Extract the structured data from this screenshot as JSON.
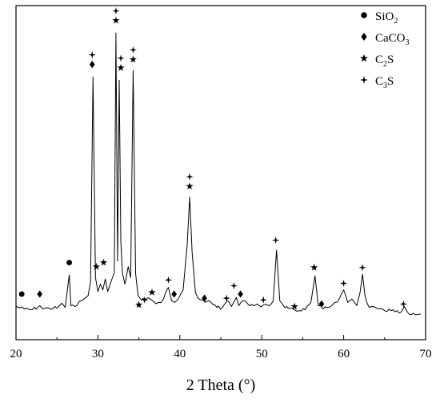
{
  "chart_data": {
    "type": "line",
    "title": "",
    "xlabel": "2 Theta (°)",
    "ylabel": "",
    "xlim": [
      20,
      70
    ],
    "x_ticks": [
      "20",
      "30",
      "40",
      "50",
      "60",
      "70"
    ],
    "y_ticks_visible": false,
    "grid": false,
    "legend_position": "top-right",
    "legend": [
      {
        "symbol": "circle",
        "label": "SiO",
        "sub": "2"
      },
      {
        "symbol": "diamond",
        "label": "CaCO",
        "sub": "3"
      },
      {
        "symbol": "star",
        "label": "C",
        "sub": "2",
        "suffix": "S"
      },
      {
        "symbol": "star4",
        "label": "C",
        "sub": "3",
        "suffix": "S"
      }
    ],
    "series": [
      {
        "x": [
          20.0,
          21.0,
          22.0,
          22.9,
          23.3,
          24.0,
          25.0,
          25.6,
          26.0,
          26.5,
          26.7,
          27.2,
          28.0,
          28.8,
          29.1,
          29.4,
          29.7,
          30.0,
          30.3,
          30.6,
          30.9,
          31.2,
          31.6,
          32.0,
          32.2,
          32.4,
          32.6,
          32.8,
          33.0,
          33.3,
          33.7,
          34.0,
          34.3,
          34.6,
          34.9,
          35.3,
          35.8,
          36.4,
          36.8,
          37.4,
          38.0,
          38.6,
          39.0,
          39.4,
          39.8,
          40.4,
          40.9,
          41.2,
          41.5,
          41.9,
          42.5,
          43.1,
          43.6,
          44.5,
          45.2,
          45.8,
          46.3,
          46.9,
          47.2,
          47.7,
          48.3,
          49.0,
          49.7,
          50.2,
          50.8,
          51.4,
          51.8,
          52.2,
          52.8,
          53.5,
          54.0,
          54.6,
          55.3,
          56.0,
          56.5,
          56.9,
          57.5,
          58.2,
          58.9,
          59.5,
          60.0,
          60.5,
          61.0,
          61.6,
          62.0,
          62.3,
          62.6,
          63.1,
          63.6,
          64.2,
          65.0,
          65.8,
          66.5,
          67.0,
          67.4,
          67.8,
          68.5,
          69.4
        ],
        "y": [
          1.5,
          1.2,
          1.1,
          1.6,
          1.2,
          1.3,
          1.3,
          1.9,
          1.4,
          5.3,
          1.6,
          1.5,
          2.2,
          2.8,
          4.5,
          29.2,
          5.0,
          3.3,
          4.2,
          3.5,
          4.8,
          3.3,
          4.5,
          5.6,
          34.5,
          7.0,
          28.8,
          9.2,
          5.5,
          4.2,
          6.3,
          5.0,
          30.0,
          5.5,
          2.8,
          2.3,
          2.3,
          2.4,
          2.1,
          2.0,
          2.4,
          3.8,
          2.2,
          2.0,
          2.4,
          3.5,
          9.0,
          14.7,
          8.0,
          3.2,
          2.3,
          2.0,
          2.2,
          1.4,
          1.4,
          2.2,
          1.5,
          2.6,
          1.6,
          2.2,
          1.8,
          1.6,
          1.6,
          1.7,
          1.6,
          2.2,
          8.3,
          2.2,
          1.4,
          1.3,
          1.1,
          1.0,
          1.1,
          2.0,
          5.2,
          1.6,
          1.2,
          1.4,
          2.0,
          2.5,
          3.5,
          2.0,
          2.4,
          1.6,
          3.2,
          5.4,
          2.8,
          1.4,
          1.5,
          1.2,
          1.0,
          1.0,
          1.0,
          0.8,
          1.5,
          0.8,
          0.7,
          0.6
        ]
      }
    ],
    "peak_markers": [
      {
        "x": 20.7,
        "y": 3.0,
        "symbols": [
          "circle"
        ]
      },
      {
        "x": 22.9,
        "y": 3.0,
        "symbols": [
          "diamond"
        ]
      },
      {
        "x": 26.5,
        "y": 6.8,
        "symbols": [
          "circle"
        ]
      },
      {
        "x": 29.3,
        "y": 30.7,
        "symbols": [
          "diamond",
          "star4"
        ]
      },
      {
        "x": 29.8,
        "y": 6.3,
        "symbols": [
          "star"
        ]
      },
      {
        "x": 30.7,
        "y": 6.8,
        "symbols": [
          "star"
        ]
      },
      {
        "x": 32.2,
        "y": 36.0,
        "symbols": [
          "star",
          "star4"
        ]
      },
      {
        "x": 32.8,
        "y": 30.3,
        "symbols": [
          "star",
          "star4"
        ]
      },
      {
        "x": 34.3,
        "y": 31.3,
        "symbols": [
          "star",
          "star4"
        ]
      },
      {
        "x": 35.0,
        "y": 1.7,
        "symbols": [
          "star"
        ]
      },
      {
        "x": 35.7,
        "y": 2.3,
        "symbols": [
          "star4"
        ]
      },
      {
        "x": 36.6,
        "y": 3.2,
        "symbols": [
          "star"
        ]
      },
      {
        "x": 38.6,
        "y": 4.7,
        "symbols": [
          "star4"
        ]
      },
      {
        "x": 39.3,
        "y": 3.0,
        "symbols": [
          "diamond"
        ]
      },
      {
        "x": 41.2,
        "y": 16.0,
        "symbols": [
          "star",
          "star4"
        ]
      },
      {
        "x": 43.0,
        "y": 2.5,
        "symbols": [
          "diamond"
        ]
      },
      {
        "x": 45.7,
        "y": 2.5,
        "symbols": [
          "star4"
        ]
      },
      {
        "x": 46.6,
        "y": 4.0,
        "symbols": [
          "star4"
        ]
      },
      {
        "x": 47.4,
        "y": 3.0,
        "symbols": [
          "diamond"
        ]
      },
      {
        "x": 50.2,
        "y": 2.3,
        "symbols": [
          "star4"
        ]
      },
      {
        "x": 51.7,
        "y": 9.5,
        "symbols": [
          "star4"
        ]
      },
      {
        "x": 54.0,
        "y": 1.5,
        "symbols": [
          "star"
        ]
      },
      {
        "x": 56.4,
        "y": 6.2,
        "symbols": [
          "star"
        ]
      },
      {
        "x": 57.3,
        "y": 1.8,
        "symbols": [
          "diamond"
        ]
      },
      {
        "x": 60.0,
        "y": 4.3,
        "symbols": [
          "star4"
        ]
      },
      {
        "x": 62.3,
        "y": 6.2,
        "symbols": [
          "star4"
        ]
      },
      {
        "x": 67.3,
        "y": 1.8,
        "symbols": [
          "star4"
        ]
      }
    ]
  }
}
